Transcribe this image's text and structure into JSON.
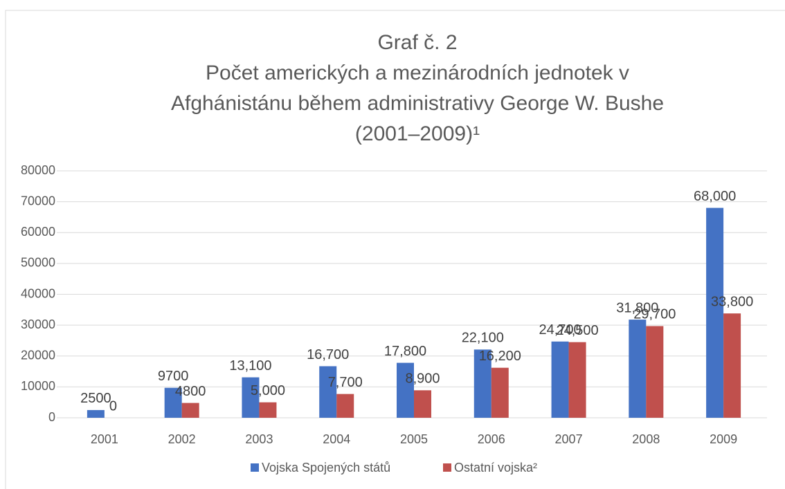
{
  "chart_data": {
    "type": "bar",
    "title": [
      "Graf č. 2",
      "Počet amerických a mezinárodních jednotek v",
      "Afghánistánu během administrativy George W. Bushe",
      "(2001–2009)¹"
    ],
    "categories": [
      "2001",
      "2002",
      "2003",
      "2004",
      "2005",
      "2006",
      "2007",
      "2008",
      "2009"
    ],
    "series": [
      {
        "name": "Vojska Spojených států",
        "color": "#4472c4",
        "values": [
          2500,
          9700,
          13100,
          16700,
          17800,
          22100,
          24700,
          31800,
          68000
        ],
        "value_labels": [
          "2500",
          "9700",
          "13,100",
          "16,700",
          "17,800",
          "22,100",
          "24,700",
          "31,800",
          "68,000"
        ]
      },
      {
        "name": "Ostatní vojska²",
        "color": "#c0504d",
        "values": [
          0,
          4800,
          5000,
          7700,
          8900,
          16200,
          24500,
          29700,
          33800
        ],
        "value_labels": [
          "0",
          "4800",
          "5,000",
          "7,700",
          "8,900",
          "16,200",
          "24,500",
          "29,700",
          "33,800"
        ]
      }
    ],
    "ylim": [
      0,
      80000
    ],
    "yticks": [
      0,
      10000,
      20000,
      30000,
      40000,
      50000,
      60000,
      70000,
      80000
    ],
    "grid": true,
    "legend": "bottom"
  }
}
